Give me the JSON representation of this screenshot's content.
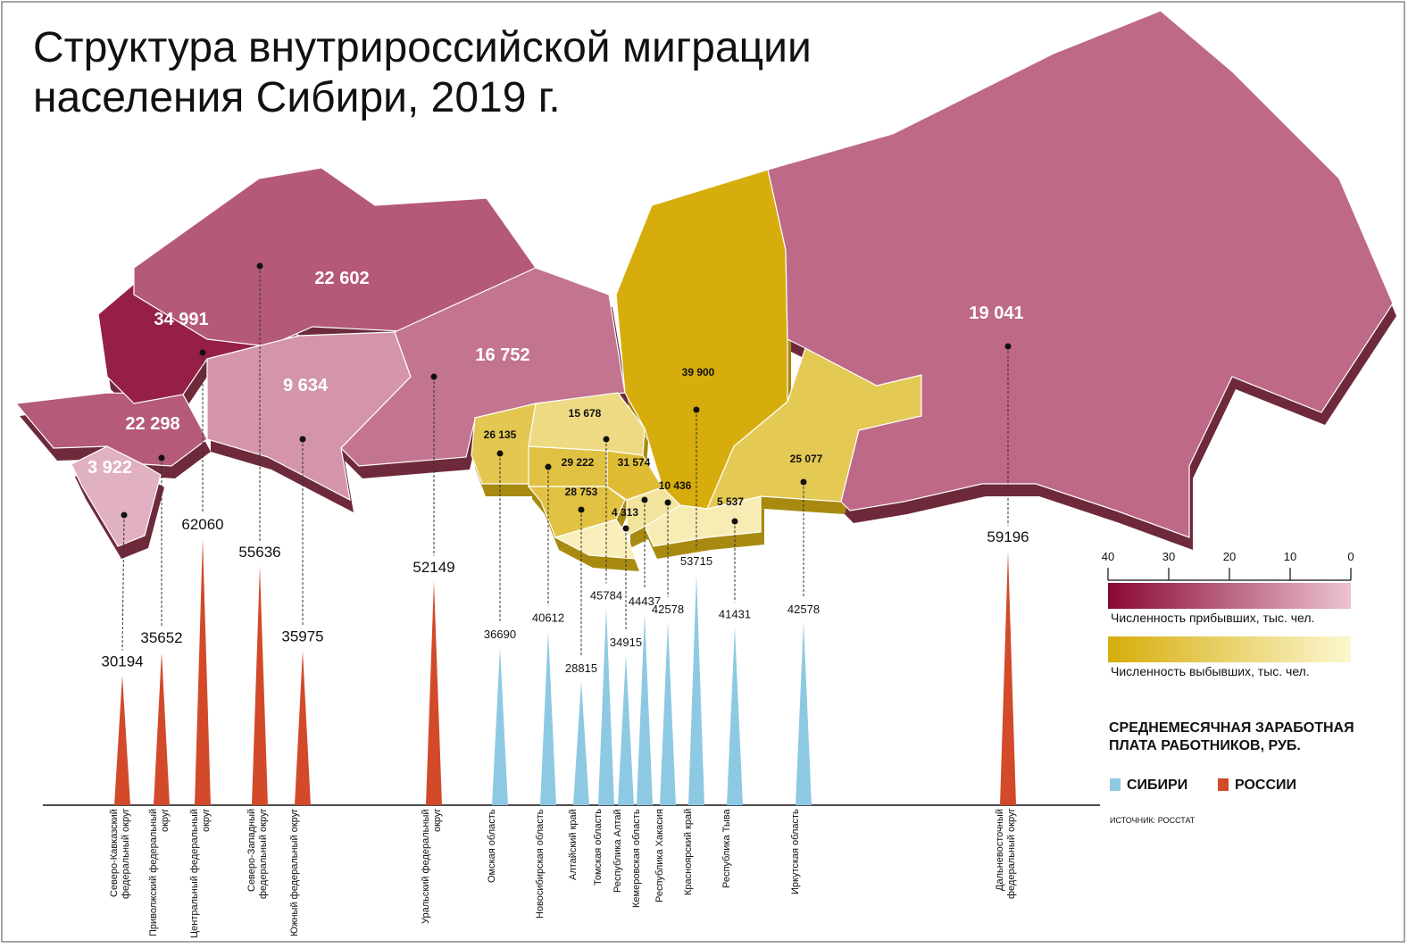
{
  "chart_data": {
    "type": "spike_map",
    "title": "Структура внутрироссийской миграции населения Сибири, 2019 г.",
    "categories": [
      "Северо-Кавказский федеральный округ",
      "Приволжский федеральный округ",
      "Центральный федеральный округ",
      "Северо-Западный федеральный округ",
      "Южный федеральный округ",
      "Уральский федеральный округ",
      "Омская область",
      "Новосибирская область",
      "Алтайский край",
      "Томская область",
      "Республика Алтай",
      "Кемеровская область",
      "Республика Хакасия",
      "Красноярский край",
      "Республика Тыва",
      "Иркутская область",
      "Дальневосточный федеральный округ"
    ],
    "series": [
      {
        "name": "СИБИРИ",
        "color": "#8ec9e3",
        "values": [
          null,
          null,
          null,
          null,
          null,
          null,
          36690,
          40612,
          28815,
          45784,
          34915,
          44437,
          42578,
          53715,
          41431,
          42578,
          null
        ]
      },
      {
        "name": "РОССИИ",
        "color": "#d24a2a",
        "values": [
          30194,
          35652,
          62060,
          55636,
          35975,
          52149,
          null,
          null,
          null,
          null,
          null,
          null,
          null,
          null,
          null,
          null,
          59196
        ]
      }
    ],
    "legend_title": "СРЕДНЕМЕСЯЧНАЯ ЗАРАБОТНАЯ ПЛАТА РАБОТНИКОВ, РУБ.",
    "map_values": [
      3922,
      22298,
      34991,
      22602,
      9634,
      16752,
      26135,
      29222,
      28753,
      15678,
      4313,
      31574,
      10436,
      39900,
      5537,
      25077,
      19041
    ],
    "map_value_labels": [
      "3 922",
      "22 298",
      "34 991",
      "22 602",
      "9 634",
      "16 752",
      "26 135",
      "29 222",
      "28 753",
      "15 678",
      "4 313",
      "31 574",
      "10 436",
      "39 900",
      "5 537",
      "25 077",
      "19 041"
    ],
    "colorbars": [
      {
        "label": "Численность прибывших, тыс. чел.",
        "colors": [
          "#8a0833",
          "#ecc2d3"
        ],
        "ticks": [
          40,
          30,
          20,
          10,
          0
        ]
      },
      {
        "label": "Численность выбывших, тыс. чел.",
        "colors": [
          "#d6ad0c",
          "#fcf7cf"
        ]
      }
    ],
    "source": "ИСТОЧНИК: РОССТАТ"
  }
}
